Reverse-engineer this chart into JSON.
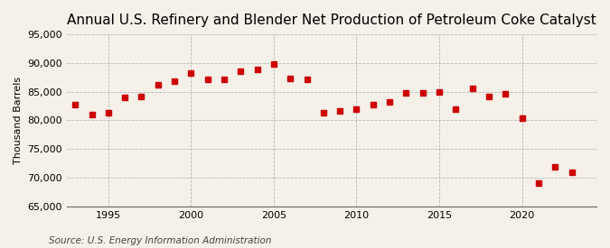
{
  "title": "Annual U.S. Refinery and Blender Net Production of Petroleum Coke Catalyst",
  "ylabel": "Thousand Barrels",
  "source": "Source: U.S. Energy Information Administration",
  "years": [
    1993,
    1994,
    1995,
    1996,
    1997,
    1998,
    1999,
    2000,
    2001,
    2002,
    2003,
    2004,
    2005,
    2006,
    2007,
    2008,
    2009,
    2010,
    2011,
    2012,
    2013,
    2014,
    2015,
    2016,
    2017,
    2018,
    2019,
    2020,
    2021,
    2022,
    2023
  ],
  "values": [
    82800,
    81000,
    81300,
    84000,
    84200,
    86200,
    86800,
    88200,
    87200,
    87200,
    88500,
    88800,
    89900,
    87300,
    87200,
    81300,
    81600,
    82000,
    82800,
    83200,
    84800,
    84800,
    85000,
    82000,
    85500,
    84100,
    84700,
    80400,
    69000,
    71800,
    71000
  ],
  "marker_color": "#cc0000",
  "marker_size": 25,
  "background_color": "#f5f0e8",
  "grid_color": "#aaaaaa",
  "ylim": [
    65000,
    95000
  ],
  "yticks": [
    65000,
    70000,
    75000,
    80000,
    85000,
    90000,
    95000
  ],
  "xticks": [
    1995,
    2000,
    2005,
    2010,
    2015,
    2020
  ],
  "xlim": [
    1992.5,
    2024.5
  ],
  "title_fontsize": 11,
  "ylabel_fontsize": 8,
  "source_fontsize": 7.5
}
